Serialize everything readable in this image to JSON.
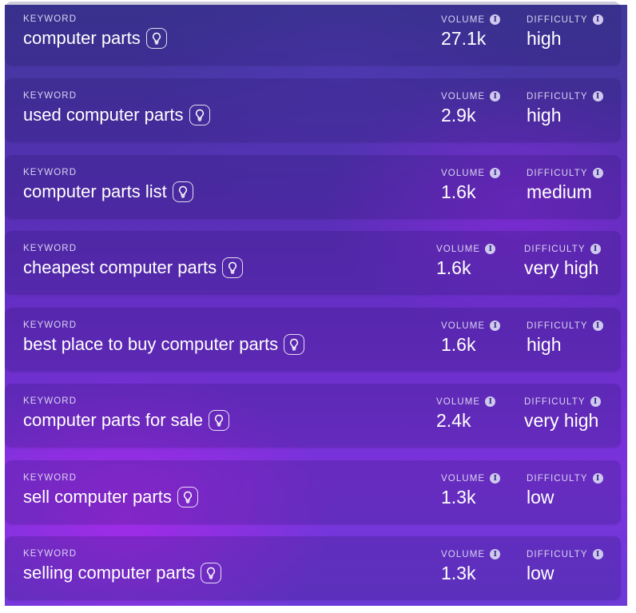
{
  "labels": {
    "keyword": "KEYWORD",
    "volume": "VOLUME",
    "difficulty": "DIFFICULTY",
    "info_glyph": "i"
  },
  "rows": [
    {
      "keyword": "computer parts",
      "volume": "27.1k",
      "difficulty": "high"
    },
    {
      "keyword": "used computer parts",
      "volume": "2.9k",
      "difficulty": "high"
    },
    {
      "keyword": "computer parts list",
      "volume": "1.6k",
      "difficulty": "medium"
    },
    {
      "keyword": "cheapest computer parts",
      "volume": "1.6k",
      "difficulty": "very high"
    },
    {
      "keyword": "best place to buy computer parts",
      "volume": "1.6k",
      "difficulty": "high"
    },
    {
      "keyword": "computer parts for sale",
      "volume": "2.4k",
      "difficulty": "very high"
    },
    {
      "keyword": "sell computer parts",
      "volume": "1.3k",
      "difficulty": "low"
    },
    {
      "keyword": "selling computer parts",
      "volume": "1.3k",
      "difficulty": "low"
    }
  ],
  "icons": {
    "idea": "lightbulb-icon",
    "info": "info-icon"
  },
  "colors": {
    "panel_top": "#3f3a9a",
    "panel_mid": "#6a2ec9",
    "panel_glow": "#af28eb",
    "text": "#ffffff",
    "label": "#d9d4f2"
  }
}
